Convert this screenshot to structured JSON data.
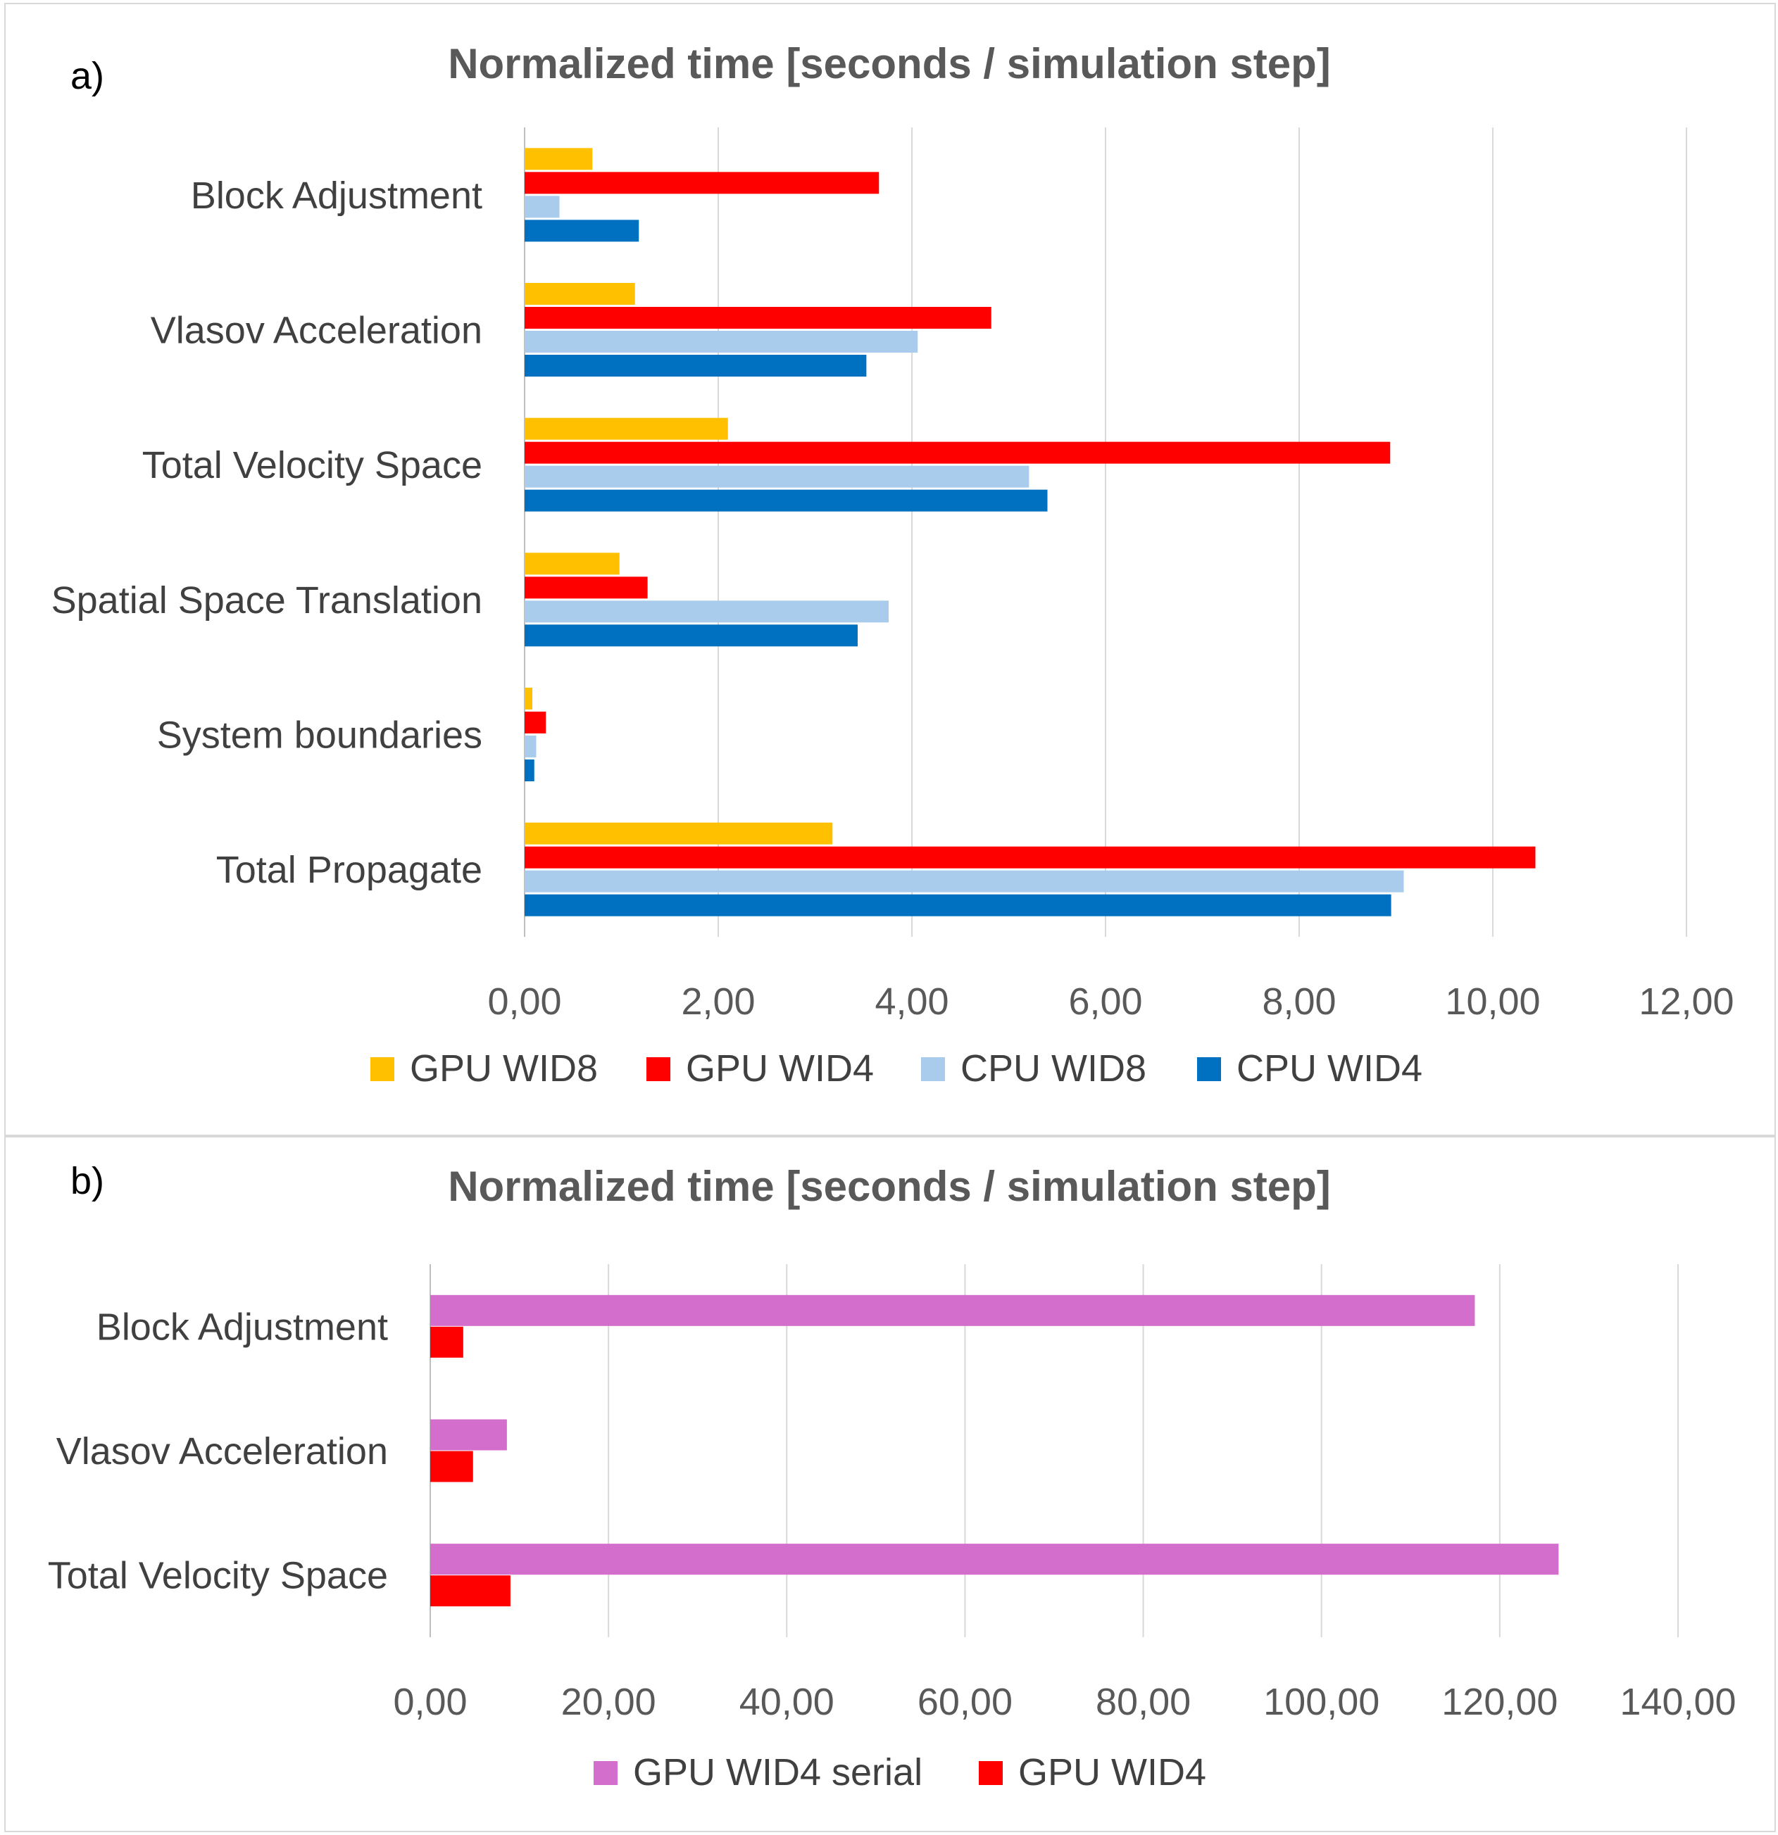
{
  "chart_data": [
    {
      "type": "bar",
      "orientation": "horizontal",
      "panel_label": "a)",
      "title": "Normalized time [seconds / simulation step]",
      "xlabel": "",
      "ylabel": "",
      "xlim": [
        0,
        12
      ],
      "ticks": [
        0,
        2,
        4,
        6,
        8,
        10,
        12
      ],
      "tick_labels": [
        "0,00",
        "2,00",
        "4,00",
        "6,00",
        "8,00",
        "10,00",
        "12,00"
      ],
      "grid": true,
      "legend_position": "bottom",
      "categories": [
        "Block Adjustment",
        "Vlasov Acceleration",
        "Total Velocity Space",
        "Spatial Space Translation",
        "System boundaries",
        "Total Propagate"
      ],
      "series": [
        {
          "name": "GPU WID8",
          "color": "#FFC000",
          "values": [
            0.7,
            1.14,
            2.1,
            0.98,
            0.08,
            3.18
          ]
        },
        {
          "name": "GPU WID4",
          "color": "#FF0000",
          "values": [
            3.66,
            4.82,
            8.94,
            1.27,
            0.22,
            10.44
          ]
        },
        {
          "name": "CPU WID8",
          "color": "#A9CBEC",
          "values": [
            0.36,
            4.06,
            5.21,
            3.76,
            0.12,
            9.08
          ]
        },
        {
          "name": "CPU WID4",
          "color": "#0070C0",
          "values": [
            1.18,
            3.53,
            5.4,
            3.44,
            0.1,
            8.95
          ]
        }
      ]
    },
    {
      "type": "bar",
      "orientation": "horizontal",
      "panel_label": "b)",
      "title": "Normalized time [seconds / simulation step]",
      "xlabel": "",
      "ylabel": "",
      "xlim": [
        0,
        140
      ],
      "ticks": [
        0,
        20,
        40,
        60,
        80,
        100,
        120,
        140
      ],
      "tick_labels": [
        "0,00",
        "20,00",
        "40,00",
        "60,00",
        "80,00",
        "100,00",
        "120,00",
        "140,00"
      ],
      "grid": true,
      "legend_position": "bottom",
      "categories": [
        "Block Adjustment",
        "Vlasov Acceleration",
        "Total Velocity Space"
      ],
      "series": [
        {
          "name": "GPU WID4 serial",
          "color": "#D46ECC",
          "values": [
            117.2,
            8.6,
            126.6
          ]
        },
        {
          "name": "GPU WID4",
          "color": "#FF0000",
          "values": [
            3.7,
            4.8,
            9.0
          ]
        }
      ]
    }
  ]
}
